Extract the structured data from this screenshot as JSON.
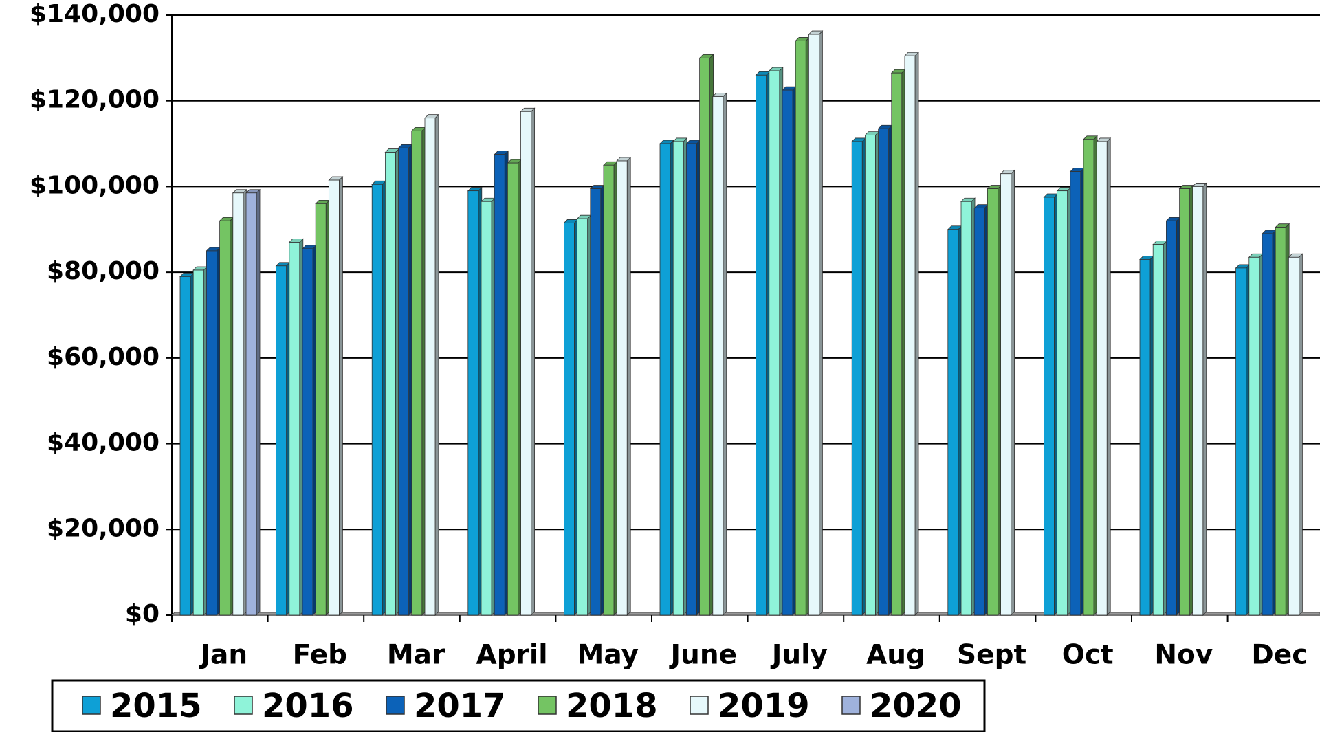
{
  "chart_data": {
    "type": "bar",
    "categories": [
      "Jan",
      "Feb",
      "Mar",
      "April",
      "May",
      "June",
      "July",
      "Aug",
      "Sept",
      "Oct",
      "Nov",
      "Dec"
    ],
    "series": [
      {
        "name": "2015",
        "color": "#0ea0d6",
        "values": [
          79000,
          81500,
          100500,
          99000,
          91500,
          110000,
          126000,
          110500,
          90000,
          97500,
          83000,
          81000
        ]
      },
      {
        "name": "2016",
        "color": "#8ff3d9",
        "values": [
          80500,
          87000,
          108000,
          96500,
          92500,
          110500,
          127000,
          112000,
          96500,
          99000,
          86500,
          83500
        ]
      },
      {
        "name": "2017",
        "color": "#0c62b8",
        "values": [
          85000,
          85500,
          109000,
          107500,
          99500,
          110000,
          122500,
          113500,
          95000,
          103500,
          92000,
          89000
        ]
      },
      {
        "name": "2018",
        "color": "#74c463",
        "values": [
          92000,
          96000,
          113000,
          105500,
          105000,
          130000,
          134000,
          126500,
          99500,
          111000,
          99500,
          90500
        ]
      },
      {
        "name": "2019",
        "color": "#e6f8fb",
        "values": [
          98500,
          101500,
          116000,
          117500,
          106000,
          121000,
          135500,
          130500,
          103000,
          110500,
          100000,
          83500
        ]
      },
      {
        "name": "2020",
        "color": "#9fb2dc",
        "values": [
          98500,
          null,
          null,
          null,
          null,
          null,
          null,
          null,
          null,
          null,
          null,
          null
        ]
      }
    ],
    "ylim": [
      0,
      140000
    ],
    "yticks": [
      {
        "value": 0,
        "label": "$0"
      },
      {
        "value": 20000,
        "label": "$20,000"
      },
      {
        "value": 40000,
        "label": "$40,000"
      },
      {
        "value": 60000,
        "label": "$60,000"
      },
      {
        "value": 80000,
        "label": "$80,000"
      },
      {
        "value": 100000,
        "label": "$100,000"
      },
      {
        "value": 120000,
        "label": "$120,000"
      },
      {
        "value": 140000,
        "label": "$140,000"
      }
    ],
    "grid": true,
    "legend": "bottom"
  }
}
